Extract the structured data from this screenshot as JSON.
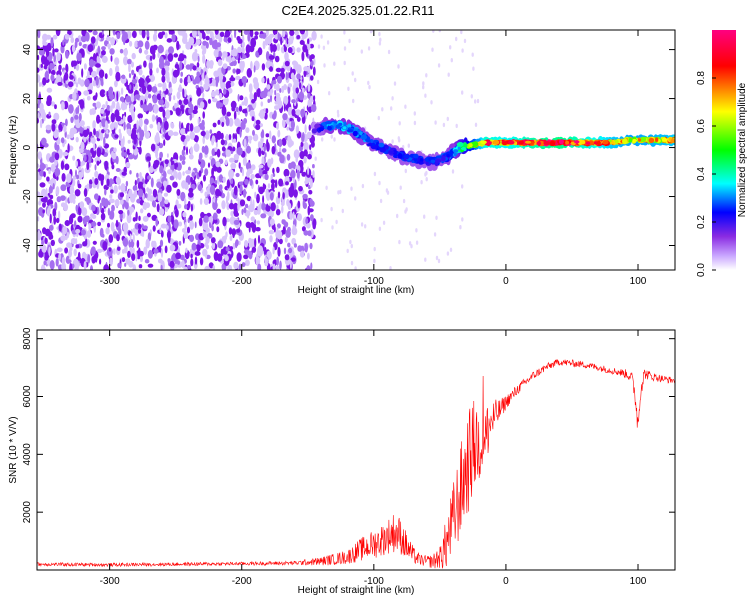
{
  "title": "C2E4.2025.325.01.22.R11",
  "chart_data": [
    {
      "type": "heatmap",
      "name": "spectrogram",
      "xlabel": "Height of straight line (km)",
      "ylabel": "Frequency (Hz)",
      "xlim": [
        -355,
        128
      ],
      "ylim": [
        -50,
        48
      ],
      "xticks": [
        -300,
        -200,
        -100,
        0,
        100
      ],
      "yticks": [
        -40,
        -20,
        0,
        20,
        40
      ],
      "colorbar": {
        "label": "Normalized spectral amplitude",
        "range": [
          0,
          1
        ],
        "ticks": [
          0.0,
          0.2,
          0.4,
          0.6,
          0.8
        ],
        "tick_labels": [
          "0.0",
          "0.2",
          "0.4",
          "0.6",
          "0.8"
        ],
        "colors": [
          "#ffffff",
          "#8a2be2",
          "#0000ff",
          "#00ffff",
          "#00ff00",
          "#ffff00",
          "#ff0000",
          "#ff0080"
        ]
      },
      "noise_region": {
        "x_start": -355,
        "x_end": -145,
        "max_amplitude": 0.15
      },
      "signal_trace": {
        "x": [
          -145,
          -135,
          -125,
          -115,
          -105,
          -95,
          -85,
          -75,
          -65,
          -55,
          -45,
          -40,
          -35,
          -25,
          -15,
          0,
          20,
          40,
          60,
          80,
          95,
          110,
          128
        ],
        "frequency": [
          8,
          9,
          9,
          7,
          3,
          0,
          -2,
          -4,
          -5,
          -6,
          -4,
          -2,
          0,
          1,
          2,
          2,
          2,
          2,
          2,
          2,
          3,
          3,
          3
        ],
        "amplitude": [
          0.18,
          0.3,
          0.32,
          0.3,
          0.28,
          0.27,
          0.25,
          0.25,
          0.24,
          0.24,
          0.26,
          0.3,
          0.4,
          0.6,
          0.85,
          0.8,
          0.9,
          0.95,
          0.85,
          0.75,
          0.7,
          0.72,
          0.75
        ]
      }
    },
    {
      "type": "line",
      "name": "snr",
      "xlabel": "Height of straight line (km)",
      "ylabel": "SNR (10 * V/V)",
      "xlim": [
        -355,
        128
      ],
      "ylim": [
        0,
        8300
      ],
      "xticks": [
        -300,
        -200,
        -100,
        0,
        100
      ],
      "yticks": [
        2000,
        4000,
        6000,
        8000
      ],
      "color": "#ff0000",
      "envelope": {
        "x": [
          -355,
          -300,
          -250,
          -200,
          -160,
          -140,
          -120,
          -110,
          -100,
          -95,
          -90,
          -85,
          -80,
          -75,
          -70,
          -65,
          -60,
          -55,
          -50,
          -45,
          -40,
          -35,
          -30,
          -25,
          -20,
          -15,
          -10,
          -5,
          0,
          10,
          20,
          30,
          40,
          50,
          60,
          70,
          80,
          90,
          95,
          98,
          100,
          102,
          105,
          110,
          120,
          128
        ],
        "mean": [
          200,
          180,
          200,
          220,
          240,
          300,
          450,
          700,
          900,
          1000,
          1150,
          1300,
          1200,
          800,
          500,
          350,
          300,
          300,
          450,
          900,
          1700,
          2600,
          3500,
          4200,
          4500,
          4800,
          5200,
          5500,
          5800,
          6300,
          6700,
          7000,
          7200,
          7150,
          7100,
          7000,
          6900,
          6800,
          6700,
          6000,
          5000,
          6300,
          6800,
          6700,
          6600,
          6550
        ],
        "spread": [
          60,
          60,
          60,
          60,
          70,
          150,
          250,
          400,
          500,
          550,
          600,
          700,
          650,
          500,
          300,
          200,
          200,
          250,
          500,
          900,
          1300,
          1600,
          1800,
          1700,
          1500,
          1200,
          700,
          400,
          250,
          180,
          150,
          130,
          120,
          120,
          120,
          120,
          120,
          150,
          200,
          400,
          500,
          400,
          200,
          150,
          120,
          120
        ]
      }
    }
  ]
}
